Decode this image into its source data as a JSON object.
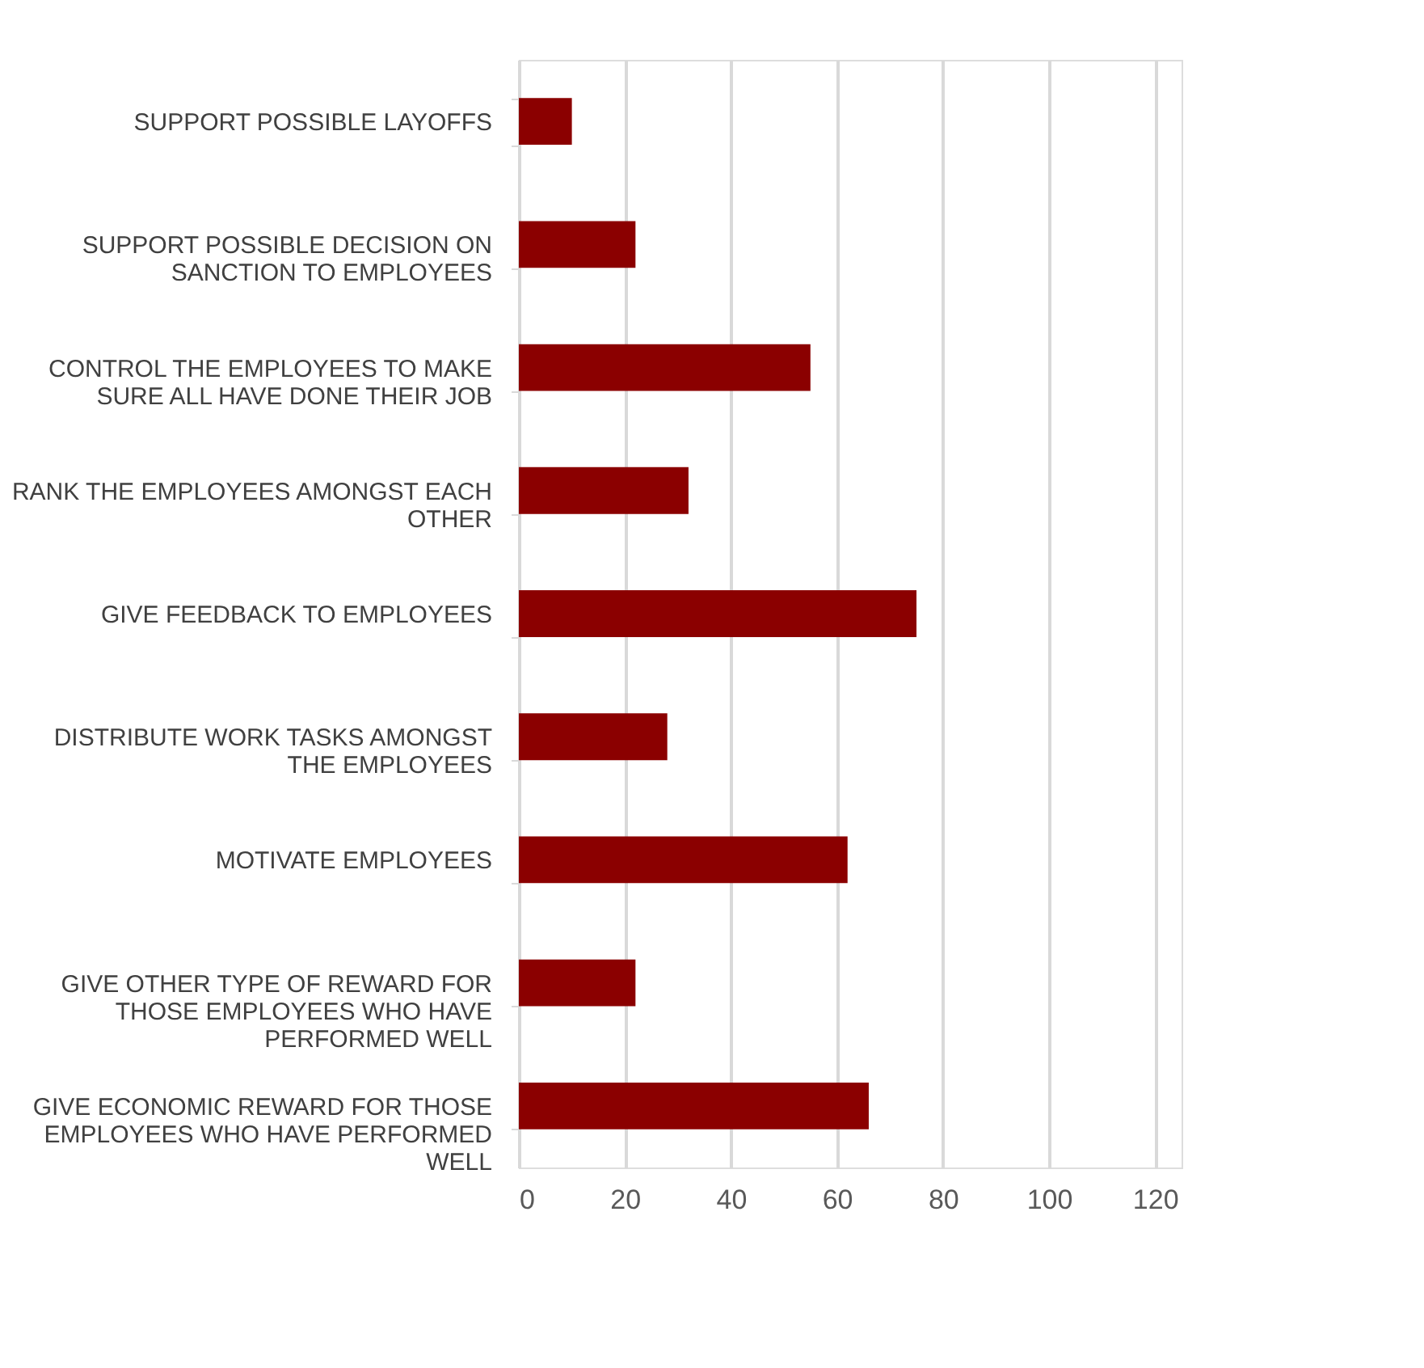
{
  "chart_data": {
    "type": "bar",
    "orientation": "horizontal",
    "categories": [
      "SUPPORT POSSIBLE LAYOFFS",
      "SUPPORT POSSIBLE DECISION ON SANCTION TO EMPLOYEES",
      "CONTROL THE EMPLOYEES TO MAKE SURE ALL HAVE DONE THEIR JOB",
      "RANK THE EMPLOYEES AMONGST EACH OTHER",
      "GIVE FEEDBACK TO EMPLOYEES",
      "DISTRIBUTE WORK TASKS AMONGST THE EMPLOYEES",
      "MOTIVATE EMPLOYEES",
      "GIVE OTHER TYPE OF REWARD FOR THOSE EMPLOYEES WHO HAVE PERFORMED WELL",
      "GIVE ECONOMIC REWARD FOR THOSE EMPLOYEES WHO HAVE PERFORMED WELL"
    ],
    "values": [
      10,
      22,
      55,
      32,
      75,
      28,
      62,
      22,
      66
    ],
    "color": "#8b0000",
    "xlim": [
      0,
      125
    ],
    "xticks": [
      0,
      20,
      40,
      60,
      80,
      100,
      120
    ],
    "grid": "x"
  }
}
